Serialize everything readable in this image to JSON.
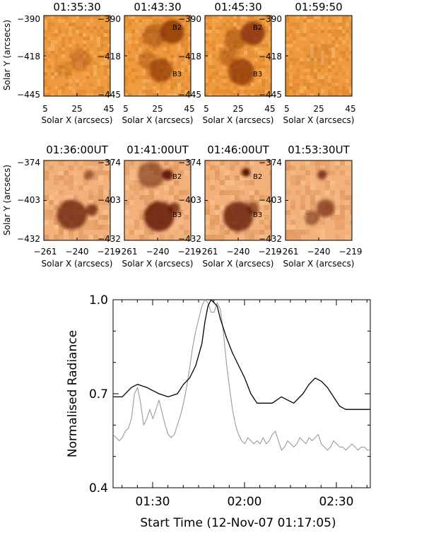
{
  "chart_data": [
    {
      "type": "heatmap",
      "panel_set": "top-row",
      "xlabel": "Solar X (arcsecs)",
      "ylabel": "Solar Y (arcsecs)",
      "xticks": [
        "5",
        "25",
        "45"
      ],
      "yticks": [
        "-390",
        "-418",
        "-445"
      ],
      "panels": [
        {
          "title": "01:35:30",
          "labels": [],
          "blobs": [
            [
              0.55,
              0.55,
              0.18,
              0.3
            ],
            [
              0.3,
              0.68,
              0.12,
              0.2
            ]
          ]
        },
        {
          "title": "01:43:30",
          "labels": [
            "B2",
            "B3"
          ],
          "blobs": [
            [
              0.72,
              0.2,
              0.2,
              0.8
            ],
            [
              0.45,
              0.25,
              0.2,
              0.45
            ],
            [
              0.55,
              0.68,
              0.2,
              0.7
            ],
            [
              0.35,
              0.55,
              0.15,
              0.35
            ]
          ]
        },
        {
          "title": "01:45:30",
          "labels": [
            "B2",
            "B3"
          ],
          "blobs": [
            [
              0.72,
              0.22,
              0.2,
              0.85
            ],
            [
              0.45,
              0.3,
              0.18,
              0.45
            ],
            [
              0.55,
              0.7,
              0.22,
              0.75
            ],
            [
              0.35,
              0.52,
              0.15,
              0.4
            ]
          ]
        },
        {
          "title": "01:59:50",
          "labels": [],
          "blobs": [
            [
              0.5,
              0.5,
              0.2,
              0.1
            ]
          ]
        }
      ]
    },
    {
      "type": "heatmap",
      "panel_set": "bottom-row",
      "xlabel": "Solar X (arcsecs)",
      "ylabel": "Solar Y (arcsecs)",
      "xticks": [
        "−261",
        "−240",
        "−219"
      ],
      "yticks": [
        "-374",
        "-403",
        "-432"
      ],
      "panels": [
        {
          "title": "01:36:00UT",
          "labels": [],
          "blobs": [
            [
              0.42,
              0.68,
              0.25,
              0.7
            ],
            [
              0.72,
              0.62,
              0.1,
              0.7
            ],
            [
              0.68,
              0.18,
              0.08,
              0.55
            ]
          ]
        },
        {
          "title": "01:41:00UT",
          "labels": [
            "B2",
            "B3"
          ],
          "blobs": [
            [
              0.65,
              0.18,
              0.09,
              0.9
            ],
            [
              0.4,
              0.18,
              0.22,
              0.5
            ],
            [
              0.52,
              0.7,
              0.25,
              0.8
            ],
            [
              0.75,
              0.6,
              0.1,
              0.7
            ]
          ]
        },
        {
          "title": "01:46:00UT",
          "labels": [
            "B2",
            "B3"
          ],
          "blobs": [
            [
              0.62,
              0.15,
              0.07,
              1.0
            ],
            [
              0.5,
              0.7,
              0.25,
              0.75
            ],
            [
              0.72,
              0.6,
              0.1,
              0.6
            ]
          ]
        },
        {
          "title": "01:53:30UT",
          "labels": [],
          "blobs": [
            [
              0.55,
              0.18,
              0.08,
              0.7
            ],
            [
              0.6,
              0.6,
              0.15,
              0.6
            ],
            [
              0.4,
              0.72,
              0.12,
              0.5
            ]
          ]
        }
      ]
    },
    {
      "type": "line",
      "panel_set": "light-curve",
      "xlabel": "Start Time (12-Nov-07 01:17:05)",
      "ylabel": "Normalised Radiance",
      "xlim": [
        0,
        84
      ],
      "ylim": [
        0.4,
        1.0
      ],
      "xticks": [
        {
          "label": "01:30",
          "value": 12.92
        },
        {
          "label": "02:00",
          "value": 42.92
        },
        {
          "label": "02:30",
          "value": 72.92
        }
      ],
      "yticks": [
        {
          "label": "0.4",
          "value": 0.4
        },
        {
          "label": "0.7",
          "value": 0.7
        },
        {
          "label": "1.0",
          "value": 1.0
        }
      ],
      "series": [
        {
          "name": "black",
          "color": "#000000",
          "points": [
            [
              0,
              0.69
            ],
            [
              3,
              0.69
            ],
            [
              6,
              0.72
            ],
            [
              8,
              0.73
            ],
            [
              11,
              0.72
            ],
            [
              13,
              0.71
            ],
            [
              15,
              0.7
            ],
            [
              18,
              0.69
            ],
            [
              21,
              0.7
            ],
            [
              23,
              0.73
            ],
            [
              25,
              0.75
            ],
            [
              27,
              0.79
            ],
            [
              29,
              0.86
            ],
            [
              30,
              0.93
            ],
            [
              31,
              0.98
            ],
            [
              32,
              1.0
            ],
            [
              33,
              0.99
            ],
            [
              34,
              0.98
            ],
            [
              35,
              0.94
            ],
            [
              37,
              0.88
            ],
            [
              39,
              0.83
            ],
            [
              41,
              0.79
            ],
            [
              43,
              0.75
            ],
            [
              45,
              0.7
            ],
            [
              47,
              0.67
            ],
            [
              49,
              0.67
            ],
            [
              52,
              0.67
            ],
            [
              55,
              0.69
            ],
            [
              57,
              0.68
            ],
            [
              59,
              0.67
            ],
            [
              62,
              0.7
            ],
            [
              64,
              0.73
            ],
            [
              66,
              0.75
            ],
            [
              68,
              0.74
            ],
            [
              70,
              0.72
            ],
            [
              72,
              0.69
            ],
            [
              74,
              0.66
            ],
            [
              76,
              0.65
            ],
            [
              79,
              0.65
            ],
            [
              82,
              0.65
            ],
            [
              84,
              0.65
            ]
          ]
        },
        {
          "name": "grey",
          "color": "#9a9a9a",
          "points": [
            [
              0,
              0.57
            ],
            [
              1,
              0.56
            ],
            [
              2,
              0.55
            ],
            [
              3,
              0.56
            ],
            [
              4,
              0.58
            ],
            [
              5,
              0.59
            ],
            [
              6,
              0.62
            ],
            [
              7,
              0.7
            ],
            [
              8,
              0.72
            ],
            [
              9,
              0.67
            ],
            [
              10,
              0.6
            ],
            [
              11,
              0.62
            ],
            [
              12,
              0.65
            ],
            [
              13,
              0.62
            ],
            [
              14,
              0.65
            ],
            [
              15,
              0.68
            ],
            [
              16,
              0.64
            ],
            [
              17,
              0.6
            ],
            [
              18,
              0.57
            ],
            [
              19,
              0.56
            ],
            [
              20,
              0.57
            ],
            [
              21,
              0.6
            ],
            [
              22,
              0.63
            ],
            [
              23,
              0.67
            ],
            [
              24,
              0.72
            ],
            [
              25,
              0.78
            ],
            [
              26,
              0.85
            ],
            [
              27,
              0.9
            ],
            [
              28,
              0.94
            ],
            [
              29,
              0.98
            ],
            [
              30,
              1.0
            ],
            [
              31,
              0.99
            ],
            [
              32,
              0.96
            ],
            [
              33,
              0.96
            ],
            [
              34,
              0.99
            ],
            [
              35,
              0.97
            ],
            [
              36,
              0.9
            ],
            [
              37,
              0.8
            ],
            [
              38,
              0.72
            ],
            [
              39,
              0.65
            ],
            [
              40,
              0.6
            ],
            [
              41,
              0.57
            ],
            [
              42,
              0.55
            ],
            [
              43,
              0.54
            ],
            [
              44,
              0.56
            ],
            [
              45,
              0.55
            ],
            [
              46,
              0.54
            ],
            [
              47,
              0.55
            ],
            [
              48,
              0.54
            ],
            [
              49,
              0.56
            ],
            [
              50,
              0.54
            ],
            [
              51,
              0.55
            ],
            [
              52,
              0.57
            ],
            [
              53,
              0.58
            ],
            [
              54,
              0.55
            ],
            [
              55,
              0.52
            ],
            [
              56,
              0.53
            ],
            [
              57,
              0.55
            ],
            [
              58,
              0.54
            ],
            [
              59,
              0.53
            ],
            [
              60,
              0.54
            ],
            [
              61,
              0.56
            ],
            [
              62,
              0.55
            ],
            [
              63,
              0.54
            ],
            [
              64,
              0.56
            ],
            [
              65,
              0.55
            ],
            [
              66,
              0.56
            ],
            [
              67,
              0.57
            ],
            [
              68,
              0.54
            ],
            [
              69,
              0.53
            ],
            [
              70,
              0.52
            ],
            [
              71,
              0.53
            ],
            [
              72,
              0.55
            ],
            [
              73,
              0.54
            ],
            [
              74,
              0.53
            ],
            [
              75,
              0.53
            ],
            [
              76,
              0.52
            ],
            [
              77,
              0.53
            ],
            [
              78,
              0.54
            ],
            [
              79,
              0.53
            ],
            [
              80,
              0.52
            ],
            [
              81,
              0.53
            ],
            [
              82,
              0.53
            ],
            [
              83,
              0.52
            ],
            [
              84,
              0.52
            ]
          ]
        }
      ]
    }
  ]
}
